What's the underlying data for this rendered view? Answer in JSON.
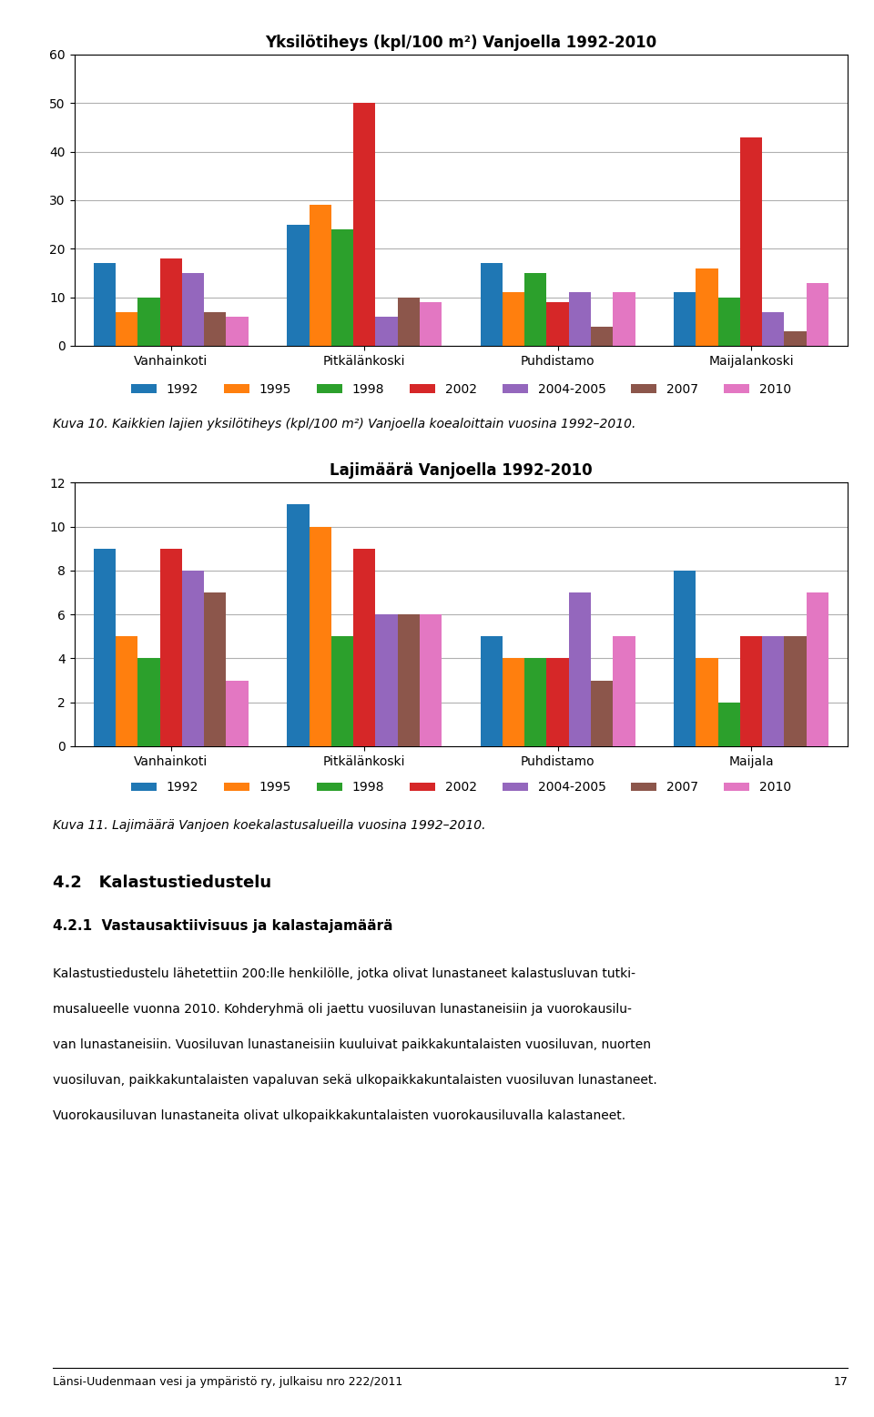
{
  "chart_data": [
    {
      "type": "bar",
      "title": "Yksilötiheys (kpl/100 m²) Vanjoella 1992-2010",
      "caption": "Kuva 10. Kaikkien lajien yksilötiheys (kpl/100 m²) Vanjoella koealoittain vuosina 1992–2010.",
      "categories": [
        "Vanhainkoti",
        "Pitkälänkoski",
        "Puhdistamo",
        "Maijalankoski"
      ],
      "series": [
        {
          "name": "1992",
          "values": [
            17,
            25,
            17,
            11
          ]
        },
        {
          "name": "1995",
          "values": [
            7,
            29,
            11,
            16
          ]
        },
        {
          "name": "1998",
          "values": [
            10,
            24,
            15,
            10
          ]
        },
        {
          "name": "2002",
          "values": [
            18,
            50,
            9,
            43
          ]
        },
        {
          "name": "2004-2005",
          "values": [
            15,
            6,
            11,
            7
          ]
        },
        {
          "name": "2007",
          "values": [
            7,
            10,
            4,
            3
          ]
        },
        {
          "name": "2010",
          "values": [
            6,
            9,
            11,
            13
          ]
        }
      ],
      "ylim": [
        0,
        60
      ],
      "yticks": [
        0,
        10,
        20,
        30,
        40,
        50,
        60
      ],
      "grid": true,
      "legend": "upper center"
    },
    {
      "type": "bar",
      "title": "Lajimäärä Vanjoella 1992-2010",
      "caption": "Kuva 11. Lajimäärä Vanjoen koekalastusalueilla vuosina 1992–2010.",
      "categories": [
        "Vanhainkoti",
        "Pitkälänkoski",
        "Puhdistamo",
        "Maijala"
      ],
      "series": [
        {
          "name": "1992",
          "values": [
            9,
            11,
            5,
            8
          ]
        },
        {
          "name": "1995",
          "values": [
            5,
            10,
            4,
            4
          ]
        },
        {
          "name": "1998",
          "values": [
            4,
            5,
            4,
            2
          ]
        },
        {
          "name": "2002",
          "values": [
            9,
            9,
            4,
            5
          ]
        },
        {
          "name": "2004-2005",
          "values": [
            8,
            6,
            7,
            5
          ]
        },
        {
          "name": "2007",
          "values": [
            7,
            6,
            3,
            5
          ]
        },
        {
          "name": "2010",
          "values": [
            3,
            6,
            5,
            7
          ]
        }
      ],
      "ylim": [
        0,
        12
      ],
      "yticks": [
        0,
        2,
        4,
        6,
        8,
        10,
        12
      ],
      "grid": true,
      "legend": "upper center"
    }
  ],
  "section_heading": "4.2   Kalastustiedustelu",
  "subsection_heading": "4.2.1  Vastausaktiivisuus ja kalastajamäärä",
  "body_lines": [
    "Kalastustiedustelu lähetettiin 200:lle henkilölle, jotka olivat lunastaneet kalastusluvan tutki-",
    "musalueelle vuonna 2010. Kohderyhmä oli jaettu vuosiluvan lunastaneisiin ja vuorokausilu-",
    "van lunastaneisiin. Vuosiluvan lunastaneisiin kuuluivat paikkakuntalaisten vuosiluvan, nuorten",
    "vuosiluvan, paikkakuntalaisten vapaluvan sekä ulkopaikkakuntalaisten vuosiluvan lunastaneet.",
    "Vuorokausiluvan lunastaneita olivat ulkopaikkakuntalaisten vuorokausiluvalla kalastaneet."
  ],
  "footer_text": "Länsi-Uudenmaan vesi ja ympäristö ry, julkaisu nro 222/2011",
  "footer_page": "17"
}
